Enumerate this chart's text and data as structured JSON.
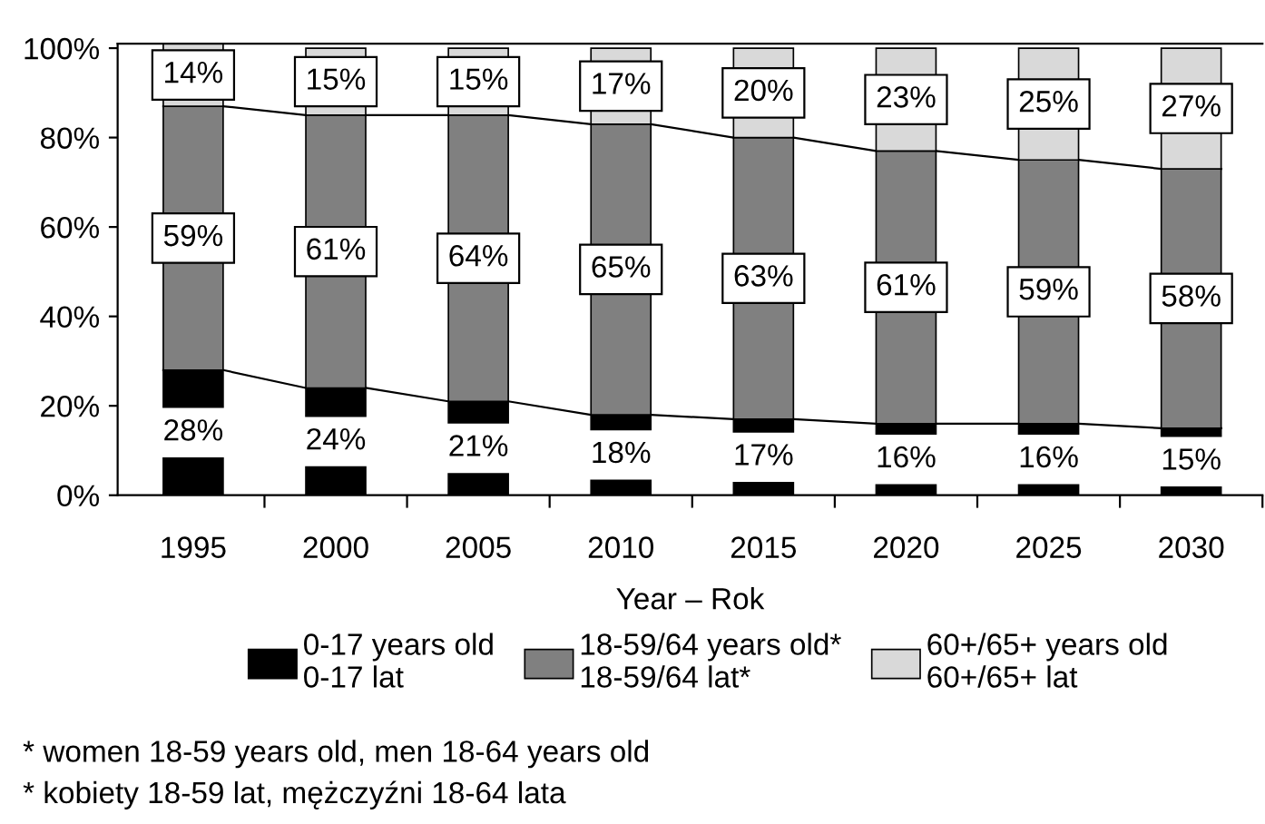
{
  "chart_data": {
    "type": "bar",
    "stacked": true,
    "xlabel": "Year – Rok",
    "categories": [
      "1995",
      "2000",
      "2005",
      "2010",
      "2015",
      "2020",
      "2025",
      "2030"
    ],
    "series": [
      {
        "name": "0-17 years old\n0-17 lat",
        "color": "#000000",
        "values": [
          28,
          24,
          21,
          18,
          17,
          16,
          16,
          15
        ],
        "value_labels": [
          "28%",
          "24%",
          "21%",
          "18%",
          "17%",
          "16%",
          "16%",
          "15%"
        ]
      },
      {
        "name": "18-59/64 years old*\n18-59/64 lat*",
        "color": "#808080",
        "values": [
          59,
          61,
          64,
          65,
          63,
          61,
          59,
          58
        ],
        "value_labels": [
          "59%",
          "61%",
          "64%",
          "65%",
          "63%",
          "61%",
          "59%",
          "58%"
        ]
      },
      {
        "name": "60+/65+ years old\n60+/65+ lat",
        "color": "#d9d9d9",
        "values": [
          14,
          15,
          15,
          17,
          20,
          23,
          25,
          27
        ],
        "value_labels": [
          "14%",
          "15%",
          "15%",
          "17%",
          "20%",
          "23%",
          "25%",
          "27%"
        ]
      }
    ],
    "ylim": [
      0,
      101
    ],
    "yticks": [
      {
        "value": 0,
        "label": "0%"
      },
      {
        "value": 20,
        "label": "20%"
      },
      {
        "value": 40,
        "label": "40%"
      },
      {
        "value": 60,
        "label": "60%"
      },
      {
        "value": 80,
        "label": "80%"
      },
      {
        "value": 100,
        "label": "100%"
      }
    ],
    "grid": false,
    "legend": "bottom",
    "annotations": [
      "* women 18-59 years old, men 18-64 years old",
      "* kobiety 18-59 lat, mężczyźni 18-64 lata"
    ]
  }
}
